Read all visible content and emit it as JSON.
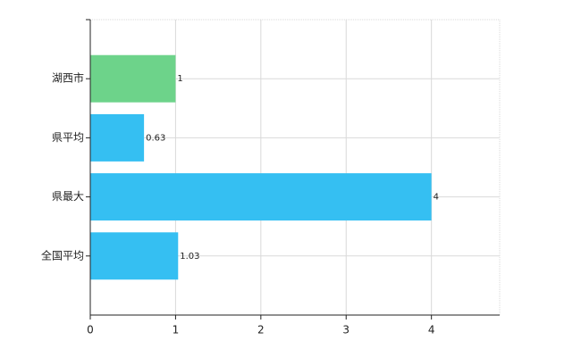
{
  "chart_data": {
    "type": "bar",
    "orientation": "horizontal",
    "categories": [
      "湖西市",
      "県平均",
      "県最大",
      "全国平均"
    ],
    "values": [
      1,
      0.63,
      4,
      1.03
    ],
    "colors": [
      "#6dd38a",
      "#35bff2",
      "#35bff2",
      "#35bff2"
    ],
    "xlim": [
      0,
      4.8
    ],
    "xticks": [
      0,
      1,
      2,
      3,
      4
    ],
    "grid": true
  }
}
